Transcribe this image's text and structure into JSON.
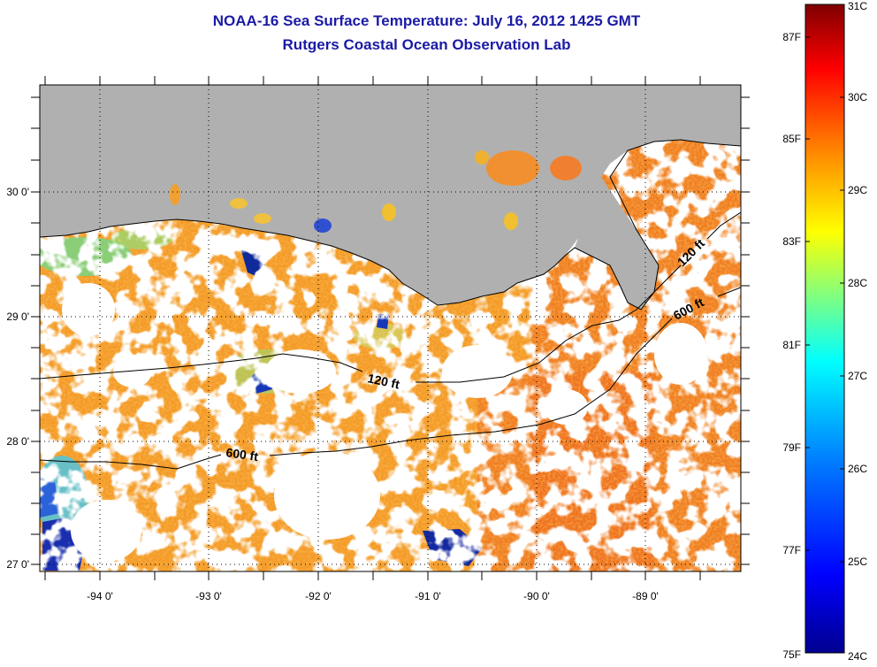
{
  "title": "NOAA-16 Sea Surface Temperature:  July 16, 2012 1425 GMT",
  "subtitle": "Rutgers Coastal Ocean Observation Lab",
  "colors": {
    "land": "#b0b0b0",
    "cloud": "#ffffff",
    "text": "#1a1aa6",
    "frame": "#000000"
  },
  "map": {
    "lat_labels": [
      "30 0'",
      "29 0'",
      "28 0'",
      "27 0'"
    ],
    "lon_labels": [
      "-94 0'",
      "-93 0'",
      "-92 0'",
      "-91 0'",
      "-90 0'",
      "-89 0'"
    ],
    "isobaths": [
      {
        "label": "120 ft",
        "depth_ft": 120
      },
      {
        "label": "600 ft",
        "depth_ft": 600
      },
      {
        "label": "600 ft",
        "depth_ft": 600
      },
      {
        "label": "120 ft",
        "depth_ft": 120
      }
    ]
  },
  "colorbar": {
    "celsius_labels": [
      "31C",
      "30C",
      "29C",
      "28C",
      "27C",
      "26C",
      "25C",
      "24C"
    ],
    "fahrenheit_labels": [
      "87F",
      "85F",
      "83F",
      "81F",
      "79F",
      "77F",
      "75F"
    ],
    "colormap": [
      "#7f0000",
      "#ff0000",
      "#ff8000",
      "#ffff00",
      "#80ff80",
      "#00ffff",
      "#0080ff",
      "#0000ff",
      "#00008f"
    ]
  }
}
